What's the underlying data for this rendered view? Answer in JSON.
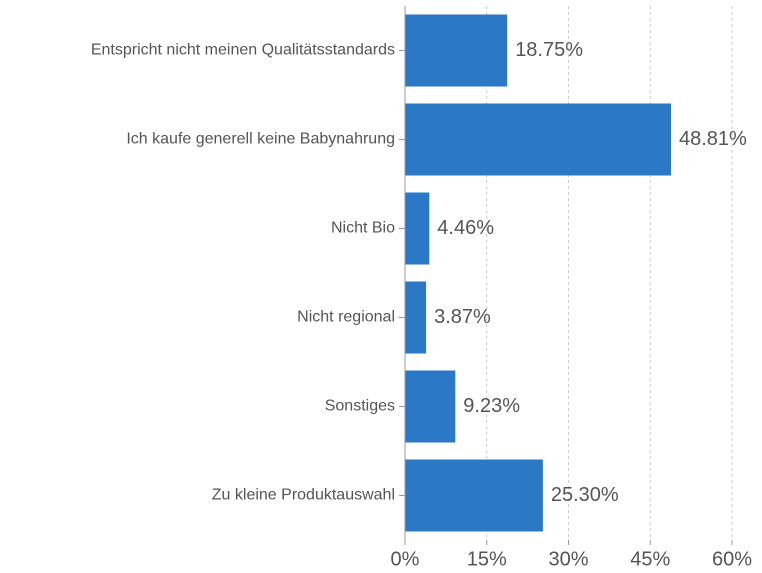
{
  "chart_data": {
    "type": "bar",
    "orientation": "horizontal",
    "categories": [
      "Entspricht nicht meinen Qualitätsstandards",
      "Ich kaufe generell keine Babynahrung",
      "Nicht Bio",
      "Nicht regional",
      "Sonstiges",
      "Zu kleine Produktauswahl"
    ],
    "values": [
      18.75,
      48.81,
      4.46,
      3.87,
      9.23,
      25.3
    ],
    "value_labels": [
      "18.75%",
      "48.81%",
      "4.46%",
      "3.87%",
      "9.23%",
      "25.30%"
    ],
    "color": "#2a78c6",
    "xlim": [
      0,
      60
    ],
    "xticks": [
      {
        "value": 0,
        "label": "0%"
      },
      {
        "value": 15,
        "label": "15%"
      },
      {
        "value": 30,
        "label": "30%"
      },
      {
        "value": 45,
        "label": "45%"
      },
      {
        "value": 60,
        "label": "60%"
      }
    ],
    "grid": true
  }
}
